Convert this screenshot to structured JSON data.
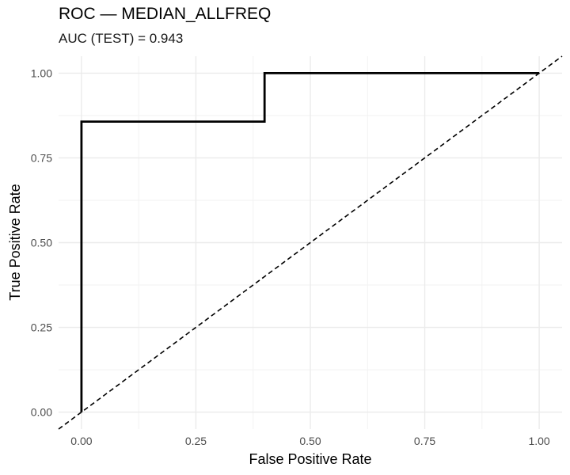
{
  "chart_data": {
    "type": "line",
    "title": "ROC — MEDIAN_ALLFREQ",
    "subtitle": "AUC (TEST) = 0.943",
    "xlabel": "False Positive Rate",
    "ylabel": "True Positive Rate",
    "xlim": [
      -0.05,
      1.05
    ],
    "ylim": [
      -0.05,
      1.05
    ],
    "x_ticks": [
      "0.00",
      "0.25",
      "0.50",
      "0.75",
      "1.00"
    ],
    "y_ticks": [
      "0.00",
      "0.25",
      "0.50",
      "0.75",
      "1.00"
    ],
    "grid": true,
    "legend": "none",
    "series": [
      {
        "x": [
          0.0,
          0.0,
          0.4,
          0.4,
          1.0
        ],
        "y": [
          0.0,
          0.857,
          0.857,
          1.0,
          1.0
        ],
        "color": "#000000",
        "style": "solid"
      }
    ],
    "reference_line": {
      "from": [
        -0.05,
        -0.05
      ],
      "to": [
        1.05,
        1.05
      ],
      "color": "#000000",
      "style": "dashed"
    }
  }
}
